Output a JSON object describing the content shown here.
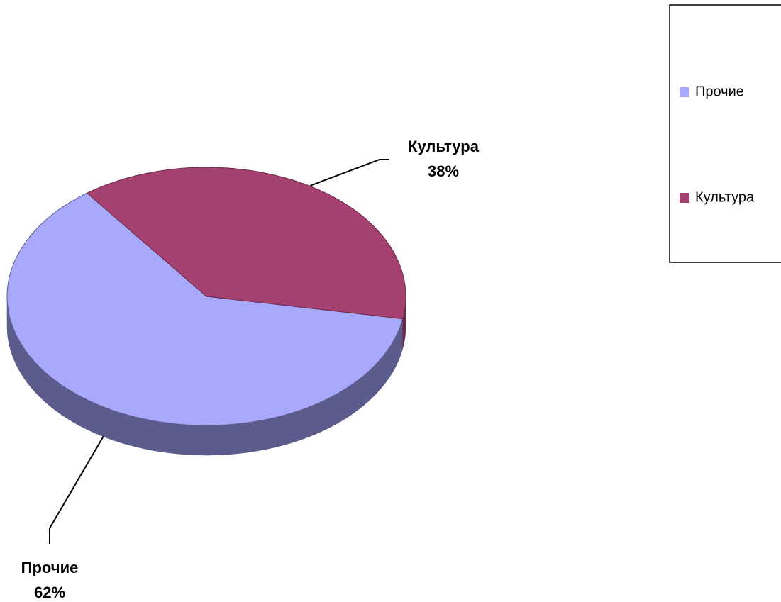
{
  "chart_data": {
    "type": "pie",
    "categories": [
      "Прочие",
      "Культура"
    ],
    "values": [
      62,
      38
    ],
    "value_labels": [
      "62%",
      "38%"
    ],
    "colors": [
      "#a9a9fc",
      "#a54170"
    ],
    "side_colors": [
      "#5c5c8c",
      "#6b2a4a"
    ],
    "legend": "right"
  }
}
